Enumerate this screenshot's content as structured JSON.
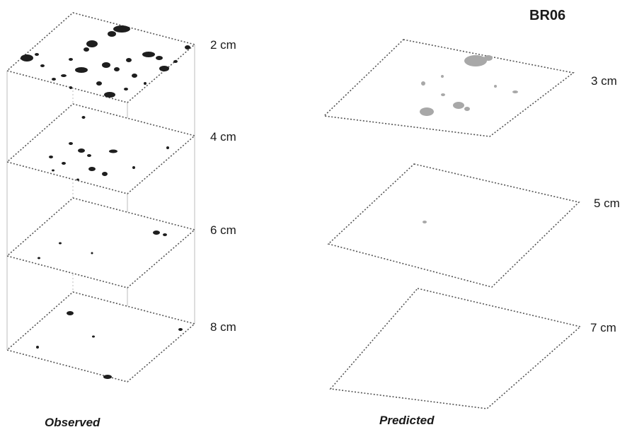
{
  "title": "BR06",
  "panels": {
    "observed": {
      "caption": "Observed",
      "layers": [
        {
          "label": "2 cm",
          "density": "high"
        },
        {
          "label": "4 cm",
          "density": "medium"
        },
        {
          "label": "6 cm",
          "density": "low"
        },
        {
          "label": "8 cm",
          "density": "low"
        }
      ]
    },
    "predicted": {
      "caption": "Predicted",
      "layers": [
        {
          "label": "3 cm",
          "density": "medium"
        },
        {
          "label": "5 cm",
          "density": "very-low"
        },
        {
          "label": "7 cm",
          "density": "none"
        }
      ]
    }
  },
  "colors": {
    "dark_patch": "#1e1e1e",
    "light_patch": "#a8a8a8",
    "edge": "#555555"
  }
}
